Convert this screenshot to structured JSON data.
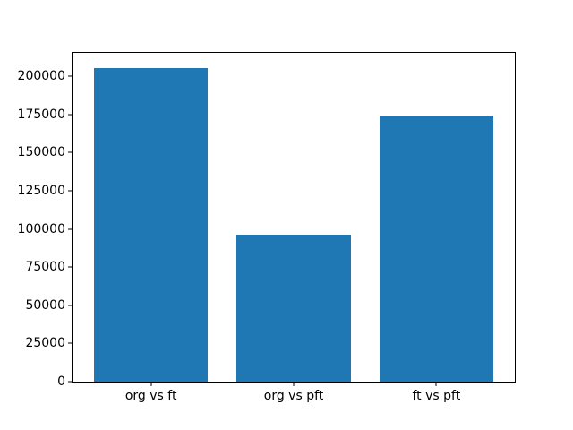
{
  "window": {
    "background": "#ffffff"
  },
  "chart_data": {
    "type": "bar",
    "title": "",
    "xlabel": "",
    "ylabel": "",
    "categories": [
      "org vs ft",
      "org vs pft",
      "ft vs pft"
    ],
    "values": [
      205000,
      96000,
      174000
    ],
    "yticks": [
      0,
      25000,
      50000,
      75000,
      100000,
      125000,
      150000,
      175000,
      200000
    ],
    "ylim": [
      0,
      215250
    ],
    "bar_color": "#1f77b4",
    "bar_width_fraction": 0.8,
    "x_edge_margin": 0.55,
    "grid": false,
    "legend": null,
    "spine_color": "#000000",
    "text_color": "#000000"
  }
}
